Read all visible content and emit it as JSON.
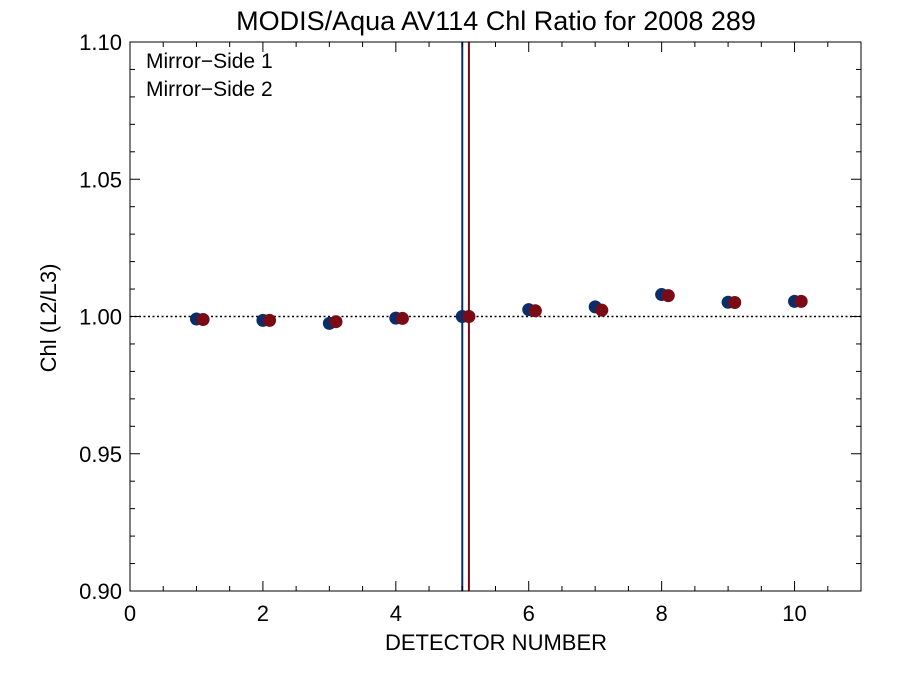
{
  "chart_data": {
    "type": "scatter",
    "title": "MODIS/Aqua AV114 Chl Ratio for 2008 289",
    "xlabel": "DETECTOR NUMBER",
    "ylabel": "Chl (L2/L3)",
    "xlim": [
      0,
      11
    ],
    "ylim": [
      0.9,
      1.1
    ],
    "x_ticks": [
      0,
      2,
      4,
      6,
      8,
      10
    ],
    "x_tick_labels": [
      "0",
      "2",
      "4",
      "6",
      "8",
      "10"
    ],
    "y_ticks": [
      0.9,
      0.95,
      1.0,
      1.05,
      1.1
    ],
    "y_tick_labels": [
      "0.90",
      "0.95",
      "1.00",
      "1.05",
      "1.10"
    ],
    "reference_line_y": 1.0,
    "vertical_lines": [
      {
        "x": 5.0,
        "color": "#0b2e6b"
      },
      {
        "x": 5.1,
        "color": "#7a0a14"
      }
    ],
    "grid": false,
    "legend_position": "top-left",
    "series": [
      {
        "name": "Mirror−Side 1",
        "color": "#0b2e6b",
        "x": [
          1,
          2,
          3,
          4,
          5,
          6,
          7,
          8,
          9,
          10
        ],
        "y": [
          0.9991,
          0.9986,
          0.9975,
          0.9994,
          1.0,
          1.0025,
          1.0035,
          1.008,
          1.0052,
          1.0055
        ]
      },
      {
        "name": "Mirror−Side 2",
        "color": "#7a0a14",
        "x": [
          1.1,
          2.1,
          3.1,
          4.1,
          5.1,
          6.1,
          7.1,
          8.1,
          9.1,
          10.1
        ],
        "y": [
          0.9989,
          0.9986,
          0.9981,
          0.9993,
          1.0,
          1.0021,
          1.0023,
          1.0076,
          1.0051,
          1.0055
        ]
      }
    ]
  }
}
